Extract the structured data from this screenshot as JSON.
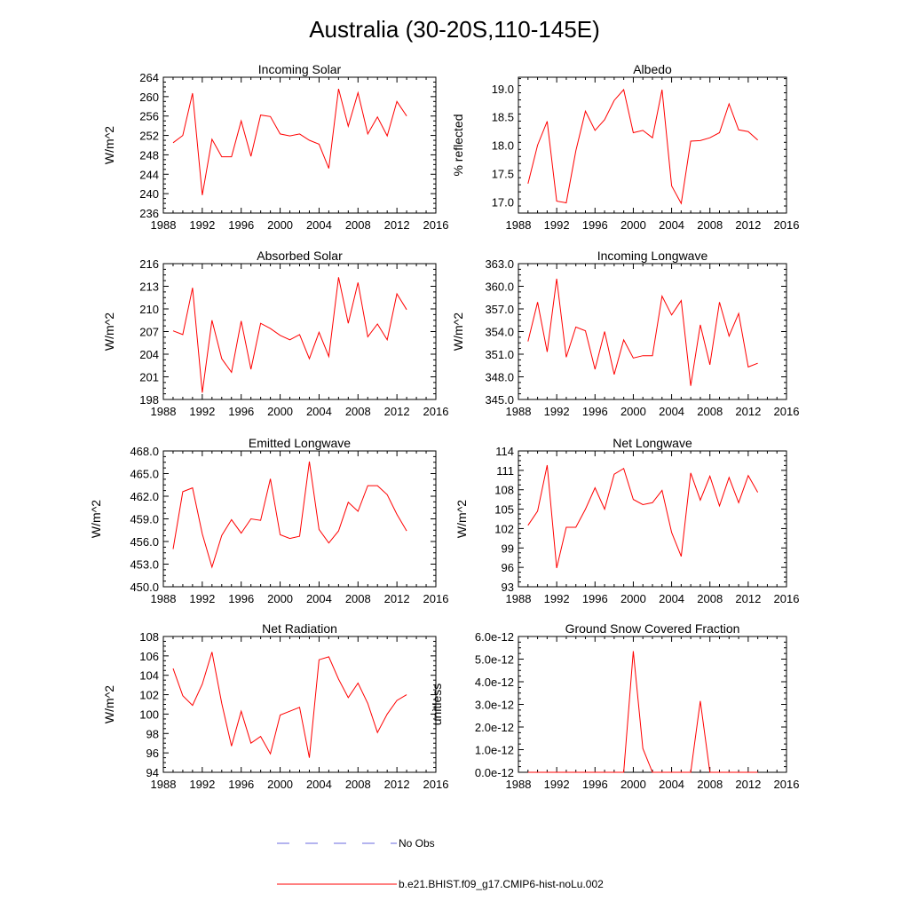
{
  "title": "Australia (30-20S,110-145E)",
  "legend": {
    "entries": [
      {
        "label": "No Obs",
        "color": "#6a6adf",
        "dash": "dashed"
      },
      {
        "label": "b.e21.BHIST.f09_g17.CMIP6-hist-noLu.002",
        "color": "#ff0000",
        "dash": "solid"
      }
    ]
  },
  "chart_data": [
    {
      "type": "line",
      "title": "Incoming Solar",
      "ylabel": "W/m^2",
      "xlim": [
        1988,
        2016
      ],
      "ylim": [
        236,
        264
      ],
      "xticks": [
        1988,
        1992,
        1996,
        2000,
        2004,
        2008,
        2012,
        2016
      ],
      "yticks": [
        236,
        240,
        244,
        248,
        252,
        256,
        260,
        264
      ],
      "ytick_labels": [
        "236",
        "240",
        "244",
        "248",
        "252",
        "256",
        "260",
        "264"
      ],
      "x": [
        1989,
        1990,
        1991,
        1992,
        1993,
        1994,
        1995,
        1996,
        1997,
        1998,
        1999,
        2000,
        2001,
        2002,
        2003,
        2004,
        2005,
        2006,
        2007,
        2008,
        2009,
        2010,
        2011,
        2012,
        2013
      ],
      "series": [
        {
          "name": "b.e21.BHIST.f09_g17.CMIP6-hist-noLu.002",
          "color": "#ff0000",
          "values": [
            250.5,
            252.0,
            260.7,
            239.7,
            251.2,
            247.6,
            247.6,
            255.0,
            247.7,
            256.2,
            255.9,
            252.3,
            251.9,
            252.3,
            251.0,
            250.2,
            245.2,
            261.6,
            253.9,
            260.8,
            252.3,
            255.8,
            251.9,
            259.0,
            256.0
          ]
        }
      ]
    },
    {
      "type": "line",
      "title": "Albedo",
      "ylabel": "% reflected",
      "xlim": [
        1988,
        2016
      ],
      "ylim": [
        16.8,
        19.2
      ],
      "xticks": [
        1988,
        1992,
        1996,
        2000,
        2004,
        2008,
        2012,
        2016
      ],
      "yticks": [
        17.0,
        17.5,
        18.0,
        18.5,
        19.0
      ],
      "ytick_labels": [
        "17.0",
        "17.5",
        "18.0",
        "18.5",
        "19.0"
      ],
      "x": [
        1989,
        1990,
        1991,
        1992,
        1993,
        1994,
        1995,
        1996,
        1997,
        1998,
        1999,
        2000,
        2001,
        2002,
        2003,
        2004,
        2005,
        2006,
        2007,
        2008,
        2009,
        2010,
        2011,
        2012,
        2013
      ],
      "series": [
        {
          "name": "b.e21.BHIST.f09_g17.CMIP6-hist-noLu.002",
          "color": "#ff0000",
          "values": [
            17.32,
            18.0,
            18.42,
            17.01,
            16.98,
            17.9,
            18.6,
            18.26,
            18.45,
            18.79,
            18.98,
            18.22,
            18.26,
            18.13,
            18.98,
            17.28,
            16.97,
            18.07,
            18.08,
            18.13,
            18.22,
            18.73,
            18.27,
            18.24,
            18.09
          ]
        }
      ]
    },
    {
      "type": "line",
      "title": "Absorbed Solar",
      "ylabel": "W/m^2",
      "xlim": [
        1988,
        2016
      ],
      "ylim": [
        198,
        216
      ],
      "xticks": [
        1988,
        1992,
        1996,
        2000,
        2004,
        2008,
        2012,
        2016
      ],
      "yticks": [
        198,
        201,
        204,
        207,
        210,
        213,
        216
      ],
      "ytick_labels": [
        "198",
        "201",
        "204",
        "207",
        "210",
        "213",
        "216"
      ],
      "x": [
        1989,
        1990,
        1991,
        1992,
        1993,
        1994,
        1995,
        1996,
        1997,
        1998,
        1999,
        2000,
        2001,
        2002,
        2003,
        2004,
        2005,
        2006,
        2007,
        2008,
        2009,
        2010,
        2011,
        2012,
        2013
      ],
      "series": [
        {
          "name": "b.e21.BHIST.f09_g17.CMIP6-hist-noLu.002",
          "color": "#ff0000",
          "values": [
            207.1,
            206.6,
            212.8,
            198.9,
            208.5,
            203.4,
            201.6,
            208.4,
            202.0,
            208.1,
            207.4,
            206.5,
            205.9,
            206.6,
            203.4,
            206.9,
            203.7,
            214.2,
            208.1,
            213.5,
            206.3,
            208.0,
            205.9,
            212.0,
            209.9
          ]
        }
      ]
    },
    {
      "type": "line",
      "title": "Incoming Longwave",
      "ylabel": "W/m^2",
      "xlim": [
        1988,
        2016
      ],
      "ylim": [
        345.0,
        363.0
      ],
      "xticks": [
        1988,
        1992,
        1996,
        2000,
        2004,
        2008,
        2012,
        2016
      ],
      "yticks": [
        345.0,
        348.0,
        351.0,
        354.0,
        357.0,
        360.0,
        363.0
      ],
      "ytick_labels": [
        "345.0",
        "348.0",
        "351.0",
        "354.0",
        "357.0",
        "360.0",
        "363.0"
      ],
      "x": [
        1989,
        1990,
        1991,
        1992,
        1993,
        1994,
        1995,
        1996,
        1997,
        1998,
        1999,
        2000,
        2001,
        2002,
        2003,
        2004,
        2005,
        2006,
        2007,
        2008,
        2009,
        2010,
        2011,
        2012,
        2013
      ],
      "series": [
        {
          "name": "b.e21.BHIST.f09_g17.CMIP6-hist-noLu.002",
          "color": "#ff0000",
          "values": [
            352.7,
            357.9,
            351.3,
            361.0,
            350.6,
            354.6,
            354.1,
            349.0,
            354.0,
            348.3,
            352.9,
            350.5,
            350.8,
            350.8,
            358.7,
            356.2,
            358.1,
            346.8,
            354.9,
            349.6,
            357.9,
            353.4,
            356.4,
            349.3,
            349.8
          ]
        }
      ]
    },
    {
      "type": "line",
      "title": "Emitted Longwave",
      "ylabel": "W/m^2",
      "xlim": [
        1988,
        2016
      ],
      "ylim": [
        450.0,
        468.0
      ],
      "xticks": [
        1988,
        1992,
        1996,
        2000,
        2004,
        2008,
        2012,
        2016
      ],
      "yticks": [
        450.0,
        453.0,
        456.0,
        459.0,
        462.0,
        465.0,
        468.0
      ],
      "ytick_labels": [
        "450.0",
        "453.0",
        "456.0",
        "459.0",
        "462.0",
        "465.0",
        "468.0"
      ],
      "x": [
        1989,
        1990,
        1991,
        1992,
        1993,
        1994,
        1995,
        1996,
        1997,
        1998,
        1999,
        2000,
        2001,
        2002,
        2003,
        2004,
        2005,
        2006,
        2007,
        2008,
        2009,
        2010,
        2011,
        2012,
        2013
      ],
      "series": [
        {
          "name": "b.e21.BHIST.f09_g17.CMIP6-hist-noLu.002",
          "color": "#ff0000",
          "values": [
            455.0,
            462.6,
            463.1,
            457.0,
            452.6,
            456.8,
            458.9,
            457.1,
            459.0,
            458.8,
            464.3,
            456.9,
            456.4,
            456.7,
            466.6,
            457.6,
            455.8,
            457.4,
            461.2,
            460.0,
            463.4,
            463.4,
            462.2,
            459.6,
            457.4
          ]
        }
      ]
    },
    {
      "type": "line",
      "title": "Net Longwave",
      "ylabel": "W/m^2",
      "xlim": [
        1988,
        2016
      ],
      "ylim": [
        93,
        114
      ],
      "xticks": [
        1988,
        1992,
        1996,
        2000,
        2004,
        2008,
        2012,
        2016
      ],
      "yticks": [
        93,
        96,
        99,
        102,
        105,
        108,
        111,
        114
      ],
      "ytick_labels": [
        "93",
        "96",
        "99",
        "102",
        "105",
        "108",
        "111",
        "114"
      ],
      "x": [
        1989,
        1990,
        1991,
        1992,
        1993,
        1994,
        1995,
        1996,
        1997,
        1998,
        1999,
        2000,
        2001,
        2002,
        2003,
        2004,
        2005,
        2006,
        2007,
        2008,
        2009,
        2010,
        2011,
        2012,
        2013
      ],
      "series": [
        {
          "name": "b.e21.BHIST.f09_g17.CMIP6-hist-noLu.002",
          "color": "#ff0000",
          "values": [
            102.5,
            104.7,
            111.8,
            95.9,
            102.2,
            102.2,
            105.0,
            108.3,
            105.0,
            110.4,
            111.3,
            106.5,
            105.7,
            106.0,
            107.9,
            101.4,
            97.7,
            110.6,
            106.4,
            110.1,
            105.5,
            109.9,
            106.0,
            110.2,
            107.6
          ]
        }
      ]
    },
    {
      "type": "line",
      "title": "Net Radiation",
      "ylabel": "W/m^2",
      "xlim": [
        1988,
        2016
      ],
      "ylim": [
        94,
        108
      ],
      "xticks": [
        1988,
        1992,
        1996,
        2000,
        2004,
        2008,
        2012,
        2016
      ],
      "yticks": [
        94,
        96,
        98,
        100,
        102,
        104,
        106,
        108
      ],
      "ytick_labels": [
        "94",
        "96",
        "98",
        "100",
        "102",
        "104",
        "106",
        "108"
      ],
      "x": [
        1989,
        1990,
        1991,
        1992,
        1993,
        1994,
        1995,
        1996,
        1997,
        1998,
        1999,
        2000,
        2001,
        2002,
        2003,
        2004,
        2005,
        2006,
        2007,
        2008,
        2009,
        2010,
        2011,
        2012,
        2013
      ],
      "series": [
        {
          "name": "b.e21.BHIST.f09_g17.CMIP6-hist-noLu.002",
          "color": "#ff0000",
          "values": [
            104.7,
            101.9,
            100.9,
            103.1,
            106.4,
            101.1,
            96.7,
            100.3,
            97.0,
            97.7,
            95.9,
            99.9,
            100.3,
            100.7,
            95.5,
            105.6,
            105.9,
            103.6,
            101.7,
            103.2,
            101.1,
            98.1,
            100.0,
            101.4,
            102.0
          ]
        }
      ]
    },
    {
      "type": "line",
      "title": "Ground Snow Covered Fraction",
      "ylabel": "unitless",
      "xlim": [
        1988,
        2016
      ],
      "ylim": [
        0,
        6e-12
      ],
      "xticks": [
        1988,
        1992,
        1996,
        2000,
        2004,
        2008,
        2012,
        2016
      ],
      "yticks": [
        0,
        1e-12,
        2e-12,
        3e-12,
        4e-12,
        5e-12,
        6e-12
      ],
      "ytick_labels": [
        "0.0e-12",
        "1.0e-12",
        "2.0e-12",
        "3.0e-12",
        "4.0e-12",
        "5.0e-12",
        "6.0e-12"
      ],
      "x": [
        1989,
        1990,
        1991,
        1992,
        1993,
        1994,
        1995,
        1996,
        1997,
        1998,
        1999,
        2000,
        2001,
        2002,
        2003,
        2004,
        2005,
        2006,
        2007,
        2008,
        2009,
        2010,
        2011,
        2012,
        2013
      ],
      "series": [
        {
          "name": "b.e21.BHIST.f09_g17.CMIP6-hist-noLu.002",
          "color": "#ff0000",
          "values": [
            0,
            0,
            0,
            0,
            0,
            0,
            0,
            0,
            0,
            0,
            0,
            5.35e-12,
            1.05e-12,
            0,
            0,
            0,
            0,
            0,
            3.15e-12,
            0,
            0,
            0,
            0,
            0,
            0
          ]
        }
      ]
    }
  ]
}
